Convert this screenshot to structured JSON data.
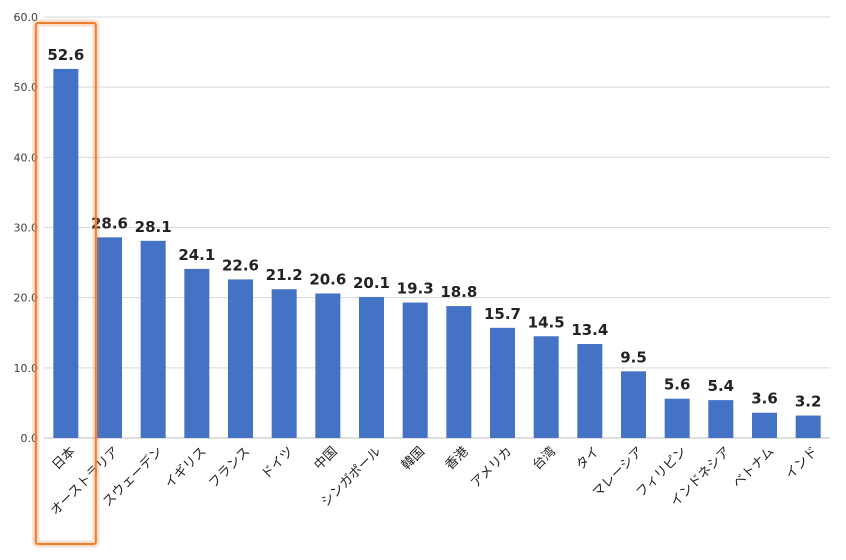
{
  "chart_data": {
    "type": "bar",
    "categories": [
      "日本",
      "オーストラリア",
      "スウェーデン",
      "イギリス",
      "フランス",
      "ドイツ",
      "中国",
      "シンガポール",
      "韓国",
      "香港",
      "アメリカ",
      "台湾",
      "タイ",
      "マレーシア",
      "フィリピン",
      "インドネシア",
      "ベトナム",
      "インド"
    ],
    "values": [
      52.6,
      28.6,
      28.1,
      24.1,
      22.6,
      21.2,
      20.6,
      20.1,
      19.3,
      18.8,
      15.7,
      14.5,
      13.4,
      9.5,
      5.6,
      5.4,
      3.6,
      3.2
    ],
    "value_labels": [
      "52.6",
      "28.6",
      "28.1",
      "24.1",
      "22.6",
      "21.2",
      "20.6",
      "20.1",
      "19.3",
      "18.8",
      "15.7",
      "14.5",
      "13.4",
      "9.5",
      "5.6",
      "5.4",
      "3.6",
      "3.2"
    ],
    "title": "",
    "xlabel": "",
    "ylabel": "",
    "ylim": [
      0,
      60
    ],
    "yticks": [
      0,
      10,
      20,
      30,
      40,
      50,
      60
    ],
    "ytick_labels": [
      "0.0",
      "10.0",
      "20.0",
      "30.0",
      "40.0",
      "50.0",
      "60.0"
    ],
    "grid": true,
    "bar_color": "#4472C4",
    "highlight": {
      "category": "日本",
      "color": "#ED7D31"
    }
  }
}
